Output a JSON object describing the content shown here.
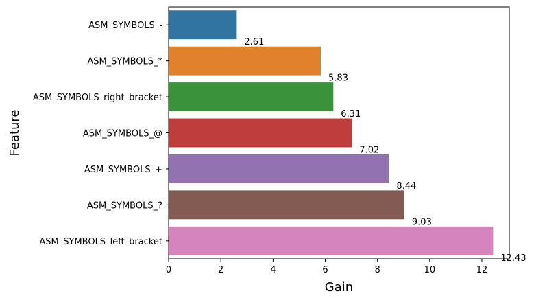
{
  "chart_data": {
    "type": "bar",
    "orientation": "horizontal",
    "xlabel": "Gain",
    "ylabel": "Feature",
    "xlim": [
      0,
      13.05
    ],
    "xticks": [
      0,
      2,
      4,
      6,
      8,
      10,
      12
    ],
    "grid": false,
    "categories": [
      "ASM_SYMBOLS_-",
      "ASM_SYMBOLS_*",
      "ASM_SYMBOLS_right_bracket",
      "ASM_SYMBOLS_@",
      "ASM_SYMBOLS_+",
      "ASM_SYMBOLS_?",
      "ASM_SYMBOLS_left_bracket"
    ],
    "values": [
      2.61,
      5.83,
      6.31,
      7.02,
      8.44,
      9.03,
      12.43
    ],
    "value_labels": [
      "2.61",
      "5.83",
      "6.31",
      "7.02",
      "8.44",
      "9.03",
      "12.43"
    ],
    "colors": [
      "#3274a1",
      "#e1812c",
      "#3a923a",
      "#c03d3e",
      "#9372b2",
      "#845b53",
      "#d684bd"
    ]
  }
}
